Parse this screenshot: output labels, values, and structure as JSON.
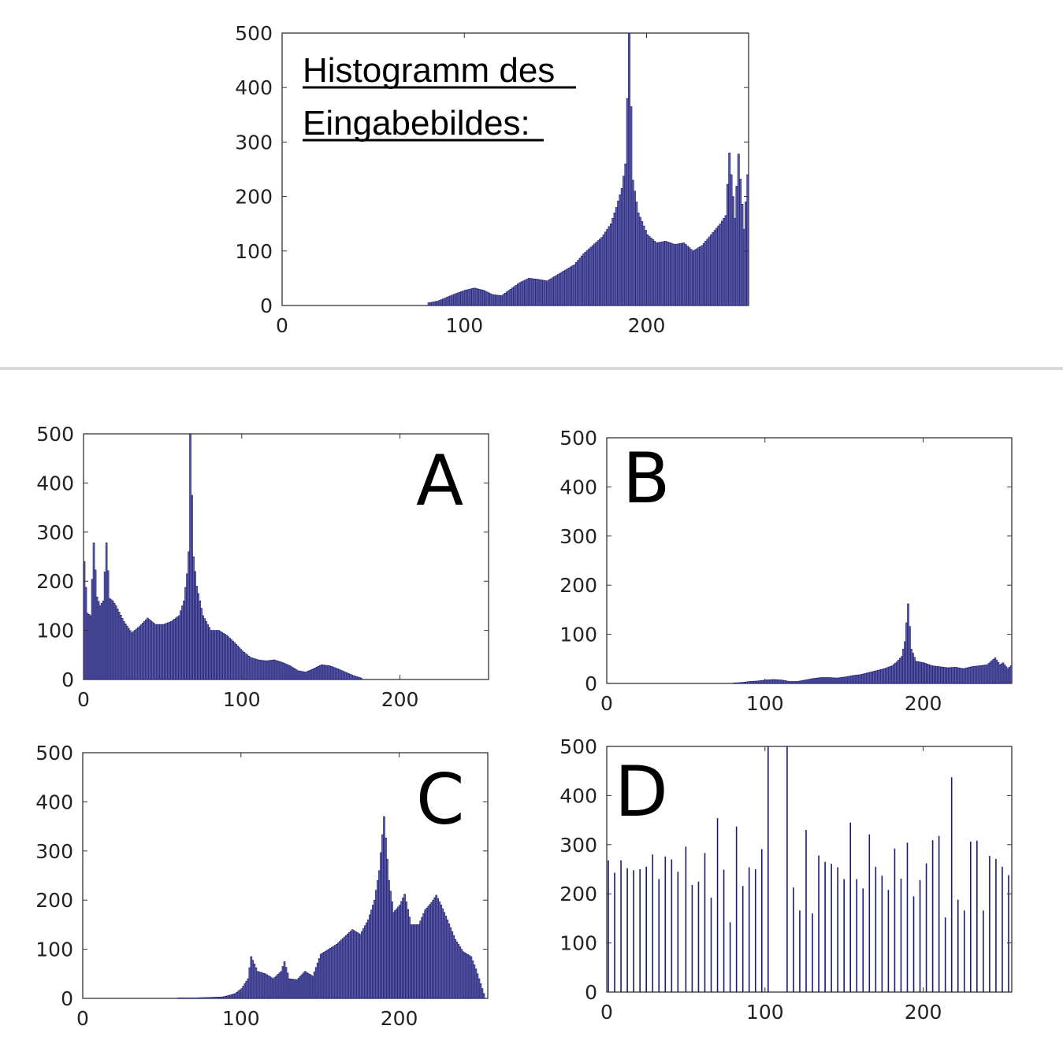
{
  "colors": {
    "bar": "#5b5ba8",
    "bar_edge": "#1a1a6e",
    "axis": "#333333",
    "background": "#ffffff"
  },
  "chart_data": [
    {
      "type": "bar",
      "panel": "input",
      "title_lines": [
        "Histogramm des",
        "Eingabebildes:"
      ],
      "xlim": [
        0,
        256
      ],
      "ylim": [
        0,
        500
      ],
      "xticks": [
        0,
        100,
        200
      ],
      "yticks": [
        0,
        100,
        200,
        300,
        400,
        500
      ],
      "xtick_labels": [
        "0",
        "100",
        "200"
      ],
      "ytick_labels": [
        "0",
        "100",
        "200",
        "300",
        "400",
        "500"
      ],
      "grid": false,
      "bins": [
        {
          "x": 80,
          "y": 5
        },
        {
          "x": 85,
          "y": 8
        },
        {
          "x": 90,
          "y": 15
        },
        {
          "x": 95,
          "y": 22
        },
        {
          "x": 100,
          "y": 28
        },
        {
          "x": 105,
          "y": 32
        },
        {
          "x": 110,
          "y": 28
        },
        {
          "x": 115,
          "y": 20
        },
        {
          "x": 120,
          "y": 18
        },
        {
          "x": 125,
          "y": 30
        },
        {
          "x": 130,
          "y": 42
        },
        {
          "x": 135,
          "y": 50
        },
        {
          "x": 140,
          "y": 48
        },
        {
          "x": 145,
          "y": 45
        },
        {
          "x": 150,
          "y": 55
        },
        {
          "x": 155,
          "y": 65
        },
        {
          "x": 160,
          "y": 75
        },
        {
          "x": 165,
          "y": 95
        },
        {
          "x": 170,
          "y": 110
        },
        {
          "x": 175,
          "y": 125
        },
        {
          "x": 180,
          "y": 150
        },
        {
          "x": 183,
          "y": 180
        },
        {
          "x": 186,
          "y": 215
        },
        {
          "x": 188,
          "y": 260
        },
        {
          "x": 190,
          "y": 500
        },
        {
          "x": 192,
          "y": 230
        },
        {
          "x": 195,
          "y": 170
        },
        {
          "x": 200,
          "y": 130
        },
        {
          "x": 205,
          "y": 115
        },
        {
          "x": 210,
          "y": 118
        },
        {
          "x": 215,
          "y": 112
        },
        {
          "x": 220,
          "y": 115
        },
        {
          "x": 225,
          "y": 100
        },
        {
          "x": 230,
          "y": 110
        },
        {
          "x": 235,
          "y": 130
        },
        {
          "x": 240,
          "y": 150
        },
        {
          "x": 243,
          "y": 165
        },
        {
          "x": 245,
          "y": 280
        },
        {
          "x": 248,
          "y": 160
        },
        {
          "x": 250,
          "y": 278
        },
        {
          "x": 253,
          "y": 140
        },
        {
          "x": 255,
          "y": 240
        }
      ]
    },
    {
      "type": "bar",
      "panel": "A",
      "label": "A",
      "xlim": [
        0,
        256
      ],
      "ylim": [
        0,
        500
      ],
      "xticks": [
        0,
        100,
        200
      ],
      "yticks": [
        0,
        100,
        200,
        300,
        400,
        500
      ],
      "xtick_labels": [
        "0",
        "100",
        "200"
      ],
      "ytick_labels": [
        "0",
        "100",
        "200",
        "300",
        "400",
        "500"
      ],
      "grid": false,
      "bins": [
        {
          "x": 0,
          "y": 240
        },
        {
          "x": 2,
          "y": 135
        },
        {
          "x": 4,
          "y": 130
        },
        {
          "x": 6,
          "y": 278
        },
        {
          "x": 8,
          "y": 168
        },
        {
          "x": 10,
          "y": 150
        },
        {
          "x": 12,
          "y": 160
        },
        {
          "x": 14,
          "y": 278
        },
        {
          "x": 16,
          "y": 165
        },
        {
          "x": 18,
          "y": 160
        },
        {
          "x": 20,
          "y": 150
        },
        {
          "x": 25,
          "y": 118
        },
        {
          "x": 30,
          "y": 95
        },
        {
          "x": 35,
          "y": 108
        },
        {
          "x": 40,
          "y": 125
        },
        {
          "x": 45,
          "y": 112
        },
        {
          "x": 50,
          "y": 112
        },
        {
          "x": 55,
          "y": 118
        },
        {
          "x": 60,
          "y": 130
        },
        {
          "x": 63,
          "y": 160
        },
        {
          "x": 65,
          "y": 215
        },
        {
          "x": 66,
          "y": 260
        },
        {
          "x": 67,
          "y": 500
        },
        {
          "x": 69,
          "y": 250
        },
        {
          "x": 71,
          "y": 190
        },
        {
          "x": 75,
          "y": 130
        },
        {
          "x": 80,
          "y": 100
        },
        {
          "x": 85,
          "y": 100
        },
        {
          "x": 90,
          "y": 90
        },
        {
          "x": 95,
          "y": 75
        },
        {
          "x": 100,
          "y": 58
        },
        {
          "x": 105,
          "y": 45
        },
        {
          "x": 110,
          "y": 40
        },
        {
          "x": 115,
          "y": 38
        },
        {
          "x": 120,
          "y": 40
        },
        {
          "x": 125,
          "y": 35
        },
        {
          "x": 130,
          "y": 28
        },
        {
          "x": 135,
          "y": 18
        },
        {
          "x": 140,
          "y": 15
        },
        {
          "x": 145,
          "y": 22
        },
        {
          "x": 150,
          "y": 30
        },
        {
          "x": 155,
          "y": 28
        },
        {
          "x": 160,
          "y": 22
        },
        {
          "x": 165,
          "y": 15
        },
        {
          "x": 170,
          "y": 8
        },
        {
          "x": 175,
          "y": 3
        }
      ]
    },
    {
      "type": "bar",
      "panel": "B",
      "label": "B",
      "xlim": [
        0,
        256
      ],
      "ylim": [
        0,
        500
      ],
      "xticks": [
        0,
        100,
        200
      ],
      "yticks": [
        0,
        100,
        200,
        300,
        400,
        500
      ],
      "xtick_labels": [
        "0",
        "100",
        "200"
      ],
      "ytick_labels": [
        "0",
        "100",
        "200",
        "300",
        "400",
        "500"
      ],
      "grid": false,
      "bins": [
        {
          "x": 80,
          "y": 1
        },
        {
          "x": 85,
          "y": 2
        },
        {
          "x": 90,
          "y": 4
        },
        {
          "x": 95,
          "y": 5
        },
        {
          "x": 100,
          "y": 7
        },
        {
          "x": 105,
          "y": 8
        },
        {
          "x": 110,
          "y": 7
        },
        {
          "x": 115,
          "y": 4
        },
        {
          "x": 120,
          "y": 4
        },
        {
          "x": 125,
          "y": 7
        },
        {
          "x": 130,
          "y": 10
        },
        {
          "x": 135,
          "y": 12
        },
        {
          "x": 140,
          "y": 12
        },
        {
          "x": 145,
          "y": 11
        },
        {
          "x": 150,
          "y": 13
        },
        {
          "x": 155,
          "y": 16
        },
        {
          "x": 160,
          "y": 18
        },
        {
          "x": 165,
          "y": 22
        },
        {
          "x": 170,
          "y": 26
        },
        {
          "x": 175,
          "y": 30
        },
        {
          "x": 180,
          "y": 36
        },
        {
          "x": 183,
          "y": 44
        },
        {
          "x": 186,
          "y": 55
        },
        {
          "x": 188,
          "y": 85
        },
        {
          "x": 190,
          "y": 162
        },
        {
          "x": 192,
          "y": 70
        },
        {
          "x": 195,
          "y": 45
        },
        {
          "x": 200,
          "y": 42
        },
        {
          "x": 205,
          "y": 36
        },
        {
          "x": 210,
          "y": 34
        },
        {
          "x": 215,
          "y": 32
        },
        {
          "x": 220,
          "y": 33
        },
        {
          "x": 225,
          "y": 30
        },
        {
          "x": 230,
          "y": 34
        },
        {
          "x": 235,
          "y": 36
        },
        {
          "x": 240,
          "y": 38
        },
        {
          "x": 245,
          "y": 52
        },
        {
          "x": 248,
          "y": 38
        },
        {
          "x": 250,
          "y": 42
        },
        {
          "x": 253,
          "y": 30
        },
        {
          "x": 255,
          "y": 36
        }
      ]
    },
    {
      "type": "bar",
      "panel": "C",
      "label": "C",
      "xlim": [
        0,
        256
      ],
      "ylim": [
        0,
        500
      ],
      "xticks": [
        0,
        100,
        200
      ],
      "yticks": [
        0,
        100,
        200,
        300,
        400,
        500
      ],
      "xtick_labels": [
        "0",
        "100",
        "200"
      ],
      "ytick_labels": [
        "0",
        "100",
        "200",
        "300",
        "400",
        "500"
      ],
      "grid": false,
      "bins": [
        {
          "x": 60,
          "y": 1
        },
        {
          "x": 70,
          "y": 1
        },
        {
          "x": 80,
          "y": 2
        },
        {
          "x": 88,
          "y": 3
        },
        {
          "x": 92,
          "y": 6
        },
        {
          "x": 96,
          "y": 10
        },
        {
          "x": 100,
          "y": 20
        },
        {
          "x": 104,
          "y": 40
        },
        {
          "x": 106,
          "y": 85
        },
        {
          "x": 110,
          "y": 55
        },
        {
          "x": 115,
          "y": 50
        },
        {
          "x": 120,
          "y": 40
        },
        {
          "x": 125,
          "y": 55
        },
        {
          "x": 127,
          "y": 75
        },
        {
          "x": 130,
          "y": 40
        },
        {
          "x": 135,
          "y": 38
        },
        {
          "x": 140,
          "y": 55
        },
        {
          "x": 145,
          "y": 45
        },
        {
          "x": 150,
          "y": 90
        },
        {
          "x": 155,
          "y": 100
        },
        {
          "x": 160,
          "y": 110
        },
        {
          "x": 165,
          "y": 125
        },
        {
          "x": 170,
          "y": 140
        },
        {
          "x": 175,
          "y": 130
        },
        {
          "x": 180,
          "y": 160
        },
        {
          "x": 184,
          "y": 200
        },
        {
          "x": 187,
          "y": 260
        },
        {
          "x": 190,
          "y": 370
        },
        {
          "x": 193,
          "y": 240
        },
        {
          "x": 196,
          "y": 175
        },
        {
          "x": 200,
          "y": 190
        },
        {
          "x": 203,
          "y": 212
        },
        {
          "x": 207,
          "y": 150
        },
        {
          "x": 212,
          "y": 150
        },
        {
          "x": 216,
          "y": 180
        },
        {
          "x": 220,
          "y": 195
        },
        {
          "x": 223,
          "y": 210
        },
        {
          "x": 226,
          "y": 190
        },
        {
          "x": 230,
          "y": 160
        },
        {
          "x": 235,
          "y": 120
        },
        {
          "x": 240,
          "y": 95
        },
        {
          "x": 245,
          "y": 85
        },
        {
          "x": 248,
          "y": 60
        },
        {
          "x": 251,
          "y": 30
        },
        {
          "x": 253,
          "y": 10
        }
      ]
    },
    {
      "type": "bar",
      "panel": "D",
      "label": "D",
      "xlim": [
        0,
        256
      ],
      "ylim": [
        0,
        500
      ],
      "xticks": [
        0,
        100,
        200
      ],
      "yticks": [
        0,
        100,
        200,
        300,
        400,
        500
      ],
      "xtick_labels": [
        "0",
        "100",
        "200"
      ],
      "ytick_labels": [
        "0",
        "100",
        "200",
        "300",
        "400",
        "500"
      ],
      "grid": false,
      "bins": [
        {
          "x": 1,
          "y": 268
        },
        {
          "x": 5,
          "y": 243
        },
        {
          "x": 9,
          "y": 268
        },
        {
          "x": 13,
          "y": 252
        },
        {
          "x": 17,
          "y": 248
        },
        {
          "x": 21,
          "y": 250
        },
        {
          "x": 25,
          "y": 255
        },
        {
          "x": 29,
          "y": 280
        },
        {
          "x": 33,
          "y": 230
        },
        {
          "x": 37,
          "y": 276
        },
        {
          "x": 41,
          "y": 270
        },
        {
          "x": 45,
          "y": 245
        },
        {
          "x": 50,
          "y": 296
        },
        {
          "x": 54,
          "y": 218
        },
        {
          "x": 58,
          "y": 225
        },
        {
          "x": 62,
          "y": 283
        },
        {
          "x": 66,
          "y": 192
        },
        {
          "x": 70,
          "y": 354
        },
        {
          "x": 74,
          "y": 249
        },
        {
          "x": 78,
          "y": 142
        },
        {
          "x": 82,
          "y": 337
        },
        {
          "x": 86,
          "y": 216
        },
        {
          "x": 90,
          "y": 254
        },
        {
          "x": 94,
          "y": 250
        },
        {
          "x": 98,
          "y": 291
        },
        {
          "x": 102,
          "y": 500
        },
        {
          "x": 114,
          "y": 500
        },
        {
          "x": 118,
          "y": 213
        },
        {
          "x": 122,
          "y": 166
        },
        {
          "x": 126,
          "y": 330
        },
        {
          "x": 130,
          "y": 160
        },
        {
          "x": 134,
          "y": 278
        },
        {
          "x": 138,
          "y": 265
        },
        {
          "x": 142,
          "y": 261
        },
        {
          "x": 146,
          "y": 254
        },
        {
          "x": 150,
          "y": 230
        },
        {
          "x": 154,
          "y": 345
        },
        {
          "x": 158,
          "y": 230
        },
        {
          "x": 162,
          "y": 211
        },
        {
          "x": 166,
          "y": 321
        },
        {
          "x": 170,
          "y": 255
        },
        {
          "x": 174,
          "y": 237
        },
        {
          "x": 178,
          "y": 208
        },
        {
          "x": 182,
          "y": 292
        },
        {
          "x": 186,
          "y": 231
        },
        {
          "x": 190,
          "y": 304
        },
        {
          "x": 194,
          "y": 195
        },
        {
          "x": 198,
          "y": 228
        },
        {
          "x": 202,
          "y": 262
        },
        {
          "x": 206,
          "y": 309
        },
        {
          "x": 210,
          "y": 318
        },
        {
          "x": 214,
          "y": 152
        },
        {
          "x": 218,
          "y": 437
        },
        {
          "x": 222,
          "y": 188
        },
        {
          "x": 226,
          "y": 166
        },
        {
          "x": 230,
          "y": 306
        },
        {
          "x": 234,
          "y": 308
        },
        {
          "x": 238,
          "y": 166
        },
        {
          "x": 242,
          "y": 277
        },
        {
          "x": 246,
          "y": 271
        },
        {
          "x": 250,
          "y": 255
        },
        {
          "x": 254,
          "y": 238
        }
      ]
    }
  ]
}
